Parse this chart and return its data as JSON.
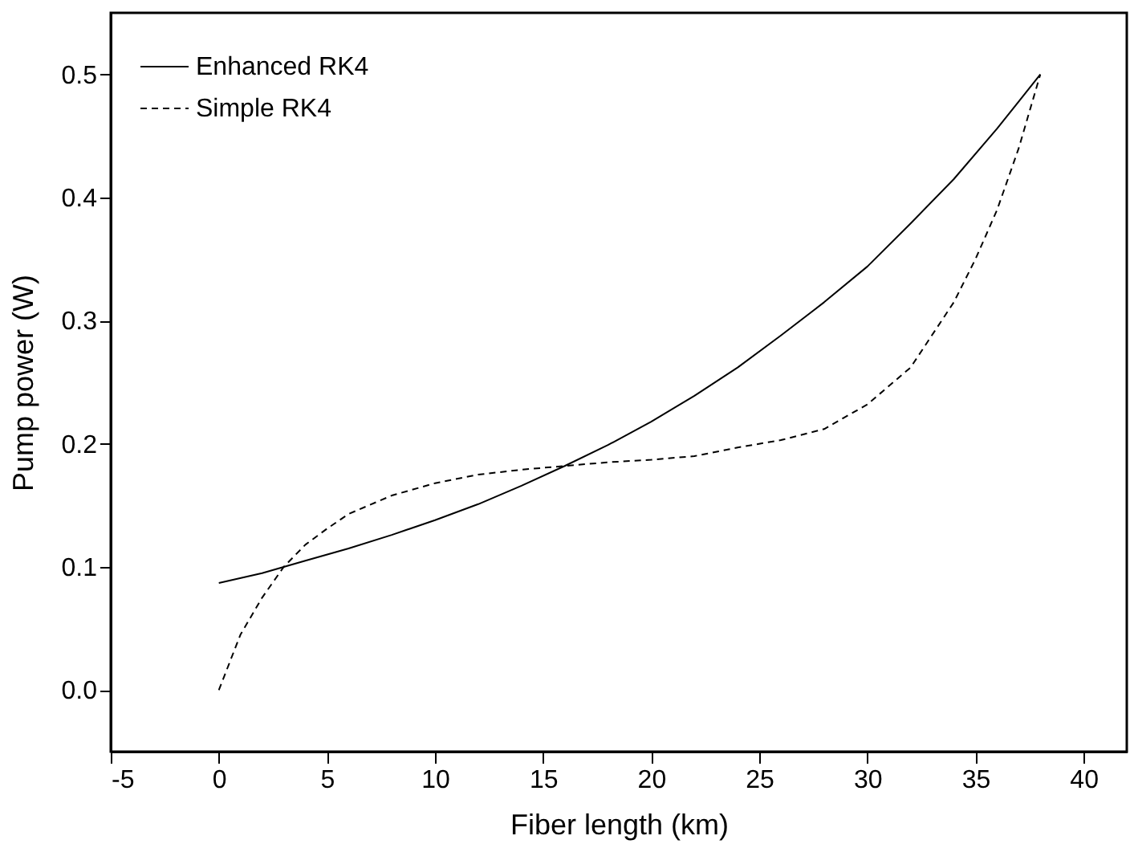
{
  "chart_data": {
    "type": "line",
    "xlabel": "Fiber length (km)",
    "ylabel": "Pump power (W)",
    "xlim": [
      -5,
      42
    ],
    "xticks": [
      -5,
      0,
      5,
      10,
      15,
      20,
      25,
      30,
      35,
      40
    ],
    "ylim": [
      -0.05,
      0.55
    ],
    "yticks": [
      {
        "value": 0,
        "label": "0.0"
      },
      {
        "value": 0.1,
        "label": "0.1"
      },
      {
        "value": 0.2,
        "label": "0.2"
      },
      {
        "value": 0.3,
        "label": "0.3"
      },
      {
        "value": 0.4,
        "label": "0.4"
      },
      {
        "value": 0.5,
        "label": "0.5"
      }
    ],
    "grid": false,
    "legend": "top left",
    "marker": "none",
    "series": [
      {
        "name": "Enhanced RK4",
        "color": "#000000",
        "line_style": "solid",
        "x": [
          0,
          2,
          4,
          6,
          8,
          10,
          12,
          14,
          16,
          18,
          20,
          22,
          24,
          26,
          28,
          30,
          32,
          34,
          36,
          38
        ],
        "values": [
          0.087,
          0.095,
          0.105,
          0.115,
          0.126,
          0.138,
          0.151,
          0.166,
          0.182,
          0.199,
          0.218,
          0.239,
          0.262,
          0.288,
          0.315,
          0.344,
          0.379,
          0.415,
          0.456,
          0.5
        ]
      },
      {
        "name": "Simple RK4",
        "color": "#000000",
        "line_style": "dashed",
        "x": [
          0,
          1,
          2,
          3,
          4,
          5,
          6,
          8,
          10,
          12,
          14,
          16,
          18,
          20,
          22,
          24,
          26,
          28,
          30,
          32,
          34,
          35,
          36,
          37,
          38
        ],
        "values": [
          0,
          0.045,
          0.075,
          0.1,
          0.118,
          0.131,
          0.143,
          0.158,
          0.168,
          0.175,
          0.179,
          0.182,
          0.185,
          0.187,
          0.19,
          0.197,
          0.203,
          0.212,
          0.232,
          0.262,
          0.315,
          0.35,
          0.39,
          0.44,
          0.5
        ]
      }
    ]
  }
}
